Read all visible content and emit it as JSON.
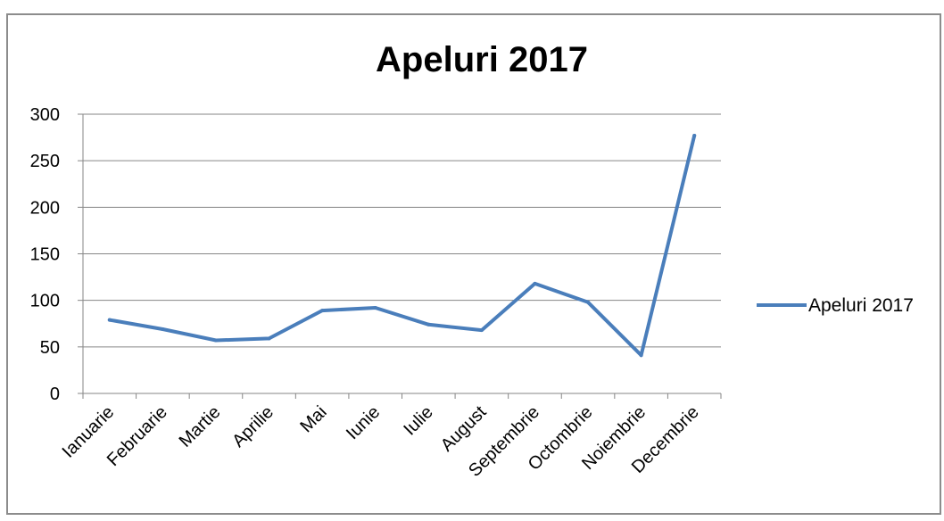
{
  "chart_data": {
    "type": "line",
    "title": "Apeluri 2017",
    "categories": [
      "Ianuarie",
      "Februarie",
      "Martie",
      "Aprilie",
      "Mai",
      "Iunie",
      "Iulie",
      "August",
      "Septembrie",
      "Octombrie",
      "Noiembrie",
      "Decembrie"
    ],
    "series": [
      {
        "name": "Apeluri 2017",
        "values": [
          79,
          69,
          57,
          59,
          89,
          92,
          74,
          68,
          118,
          98,
          41,
          277
        ],
        "color": "#4A7EBB"
      }
    ],
    "yticks": [
      "0",
      "50",
      "100",
      "150",
      "200",
      "250",
      "300"
    ],
    "ylim": [
      0,
      300
    ],
    "grid": true,
    "legend_position": "right"
  }
}
